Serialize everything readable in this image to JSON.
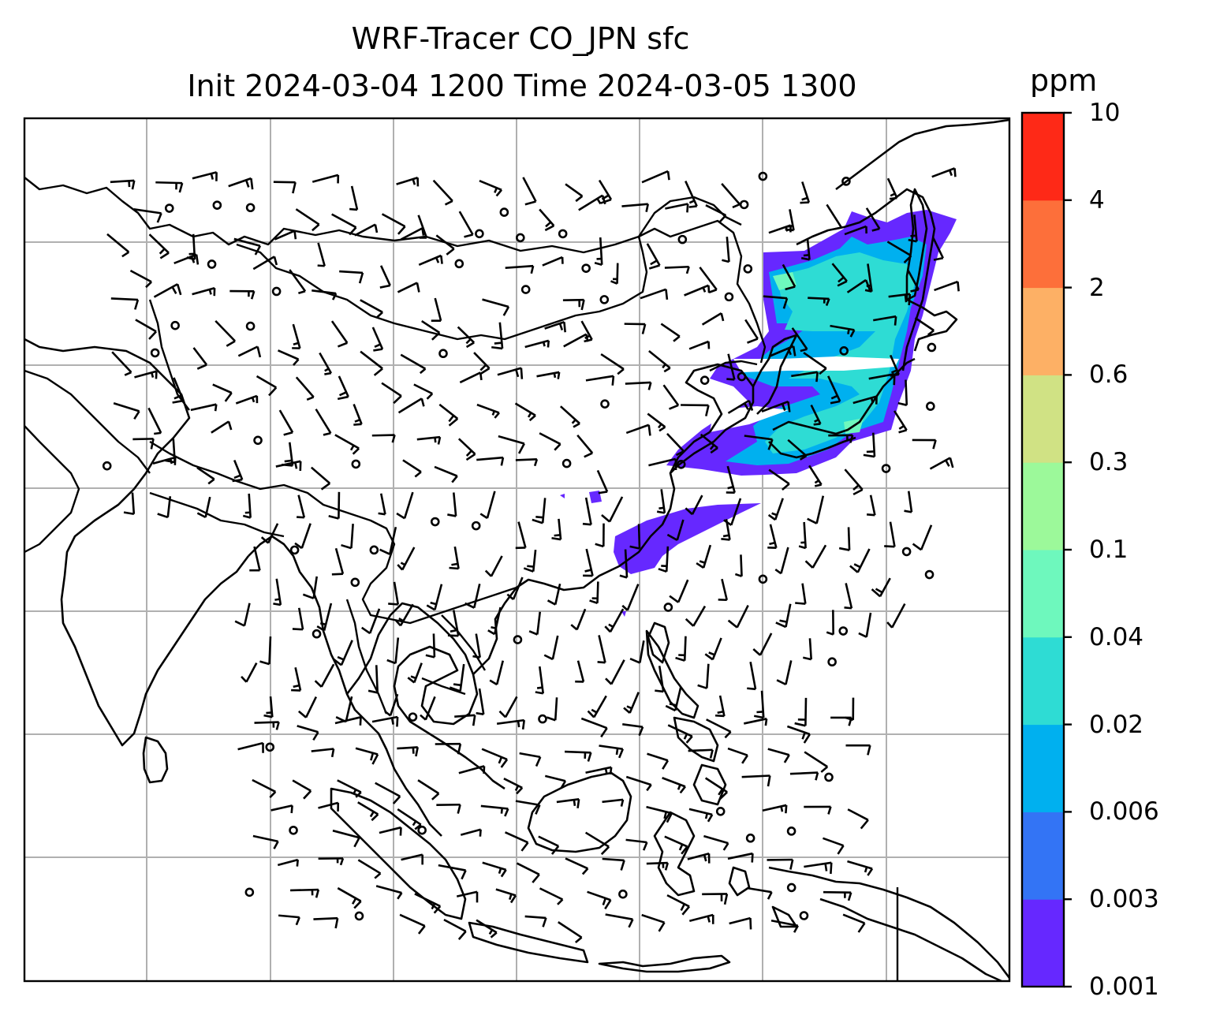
{
  "header": {
    "title_line1": "WRF-Tracer CO_JPN sfc",
    "title_line2": "Init 2024-03-04 1200 Time 2024-03-05 1300"
  },
  "colorbar": {
    "unit": "ppm",
    "levels": [
      "0.001",
      "0.003",
      "0.006",
      "0.02",
      "0.04",
      "0.1",
      "0.3",
      "0.6",
      "2",
      "4",
      "10"
    ],
    "colors": [
      "#6628ff",
      "#3374f5",
      "#00b0ef",
      "#2edcd4",
      "#6ef8bd",
      "#9cf99a",
      "#d0e284",
      "#fdb065",
      "#fd6f3a",
      "#fe2917"
    ]
  },
  "map": {
    "gridlines": true,
    "features": [
      "coastlines",
      "country-borders",
      "wind-barbs",
      "tracer-plume"
    ],
    "colors": {
      "frame": "#000000",
      "grid": "#b0b0b0",
      "land": "#000000",
      "barb": "#000000"
    }
  }
}
